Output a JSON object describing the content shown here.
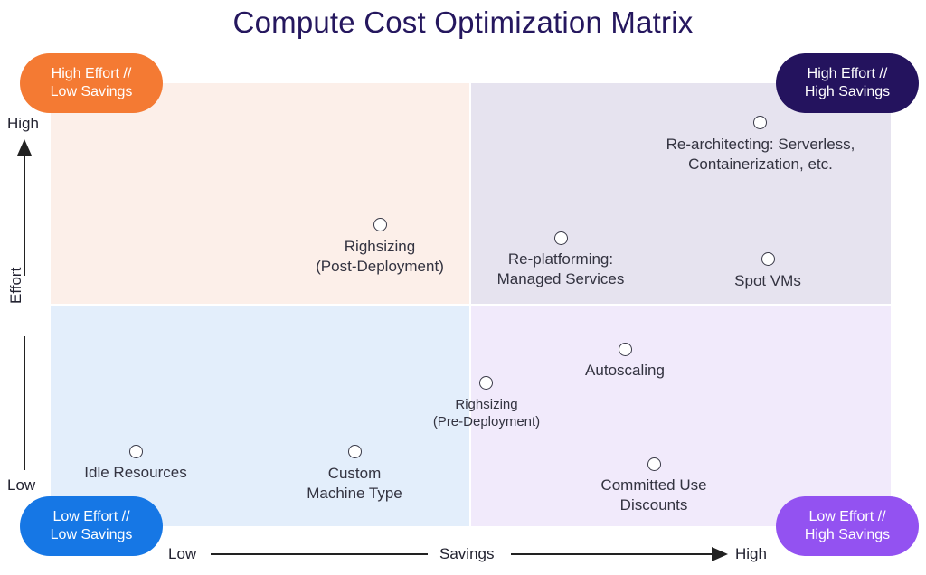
{
  "title": "Compute Cost Optimization Matrix",
  "quadrants": {
    "top_left": {
      "line1": "High Effort //",
      "line2": "Low Savings",
      "color": "#f47a33",
      "bg": "#fcefe9"
    },
    "top_right": {
      "line1": "High Effort //",
      "line2": "High Savings",
      "color": "#24135e",
      "bg": "#e6e3ef"
    },
    "bottom_left": {
      "line1": "Low Effort //",
      "line2": "Low Savings",
      "color": "#1677e5",
      "bg": "#e3eefb"
    },
    "bottom_right": {
      "line1": "Low Effort //",
      "line2": "High Savings",
      "color": "#9352f1",
      "bg": "#f1eafb"
    }
  },
  "axes": {
    "y_label": "Effort",
    "y_high": "High",
    "y_low": "Low",
    "x_label": "Savings",
    "x_low": "Low",
    "x_high": "High"
  },
  "points": [
    {
      "line1": "Re-architecting: Serverless,",
      "line2": "Containerization, etc."
    },
    {
      "line1": "Righsizing",
      "line2": "(Post-Deployment)"
    },
    {
      "line1": "Re-platforming:",
      "line2": "Managed Services"
    },
    {
      "line1": "Spot VMs",
      "line2": ""
    },
    {
      "line1": "Autoscaling",
      "line2": ""
    },
    {
      "line1": "Righsizing",
      "line2": "(Pre-Deployment)"
    },
    {
      "line1": "Idle Resources",
      "line2": ""
    },
    {
      "line1": "Custom",
      "line2": "Machine Type"
    },
    {
      "line1": "Committed Use",
      "line2": "Discounts"
    }
  ]
}
